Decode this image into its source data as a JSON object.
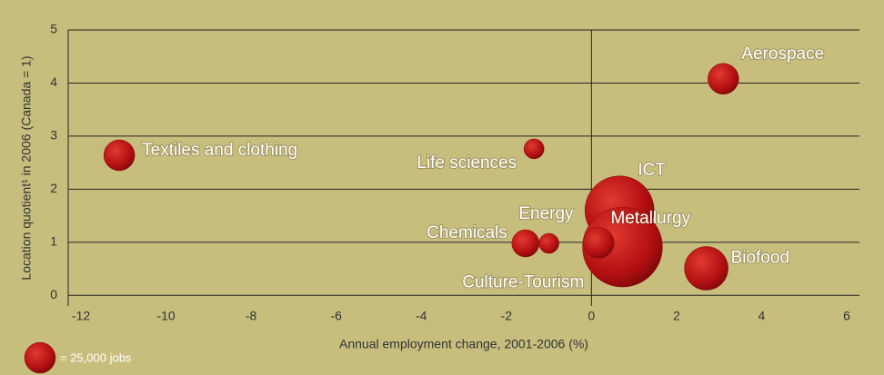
{
  "chart_data": {
    "type": "bubble",
    "x_label": "Annual employment change, 2001-2006 (%)",
    "y_label": "Location quotient¹ in 2006 (Canada = 1)",
    "xlim": [
      -12.3,
      6.3
    ],
    "ylim": [
      -0.2,
      5
    ],
    "xticks": [
      -12,
      -10,
      -8,
      -6,
      -4,
      -2,
      0,
      2,
      4,
      6
    ],
    "yticks": [
      0,
      1,
      2,
      3,
      4,
      5
    ],
    "grid": true,
    "color": "#b30f12",
    "points": [
      {
        "label": "Aerospace",
        "x": 3.1,
        "y": 4.08,
        "size": 25000
      },
      {
        "label": "Textiles and clothing",
        "x": -11.1,
        "y": 2.64,
        "size": 25000
      },
      {
        "label": "Life sciences",
        "x": -1.35,
        "y": 2.76,
        "size": 10500
      },
      {
        "label": "ICT",
        "x": 0.66,
        "y": 1.6,
        "size": 125000
      },
      {
        "label": "Metallurgy",
        "x": 0.73,
        "y": 0.91,
        "size": 167000
      },
      {
        "label": "Biofood",
        "x": 2.7,
        "y": 0.51,
        "size": 50000
      },
      {
        "label": "Energy",
        "x": -1.0,
        "y": 0.98,
        "size": 10500
      },
      {
        "label": "Chemicals",
        "x": -1.55,
        "y": 0.98,
        "size": 19500
      },
      {
        "label": "Culture-Tourism",
        "x": 0.17,
        "y": 0.99,
        "size": 25000
      }
    ],
    "legend": {
      "label": "= 25,000 jobs",
      "value": 25000
    }
  }
}
